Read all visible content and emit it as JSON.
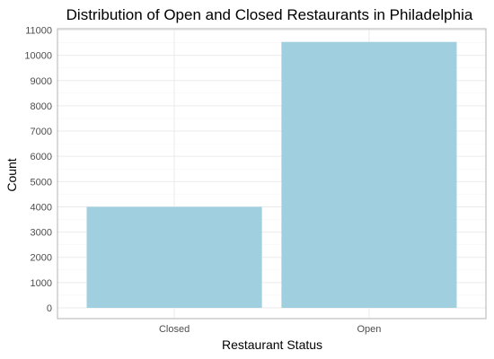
{
  "chart_data": {
    "type": "bar",
    "title": "Distribution of Open and Closed Restaurants in Philadelphia",
    "xlabel": "Restaurant Status",
    "ylabel": "Count",
    "categories": [
      "Closed",
      "Open"
    ],
    "values": [
      4000,
      10530
    ],
    "ylim": [
      0,
      11000
    ],
    "yticks": [
      "0",
      "1000",
      "2000",
      "3000",
      "4000",
      "5000",
      "6000",
      "7000",
      "8000",
      "9000",
      "10000",
      "11000"
    ],
    "grid": true,
    "legend": "none",
    "colors": {
      "bar": "#a0d0e0",
      "grid_major": "#ebebeb",
      "grid_minor": "#f5f5f5",
      "panel_border": "#b3b3b3",
      "tick_text": "#4d4d4d"
    }
  }
}
